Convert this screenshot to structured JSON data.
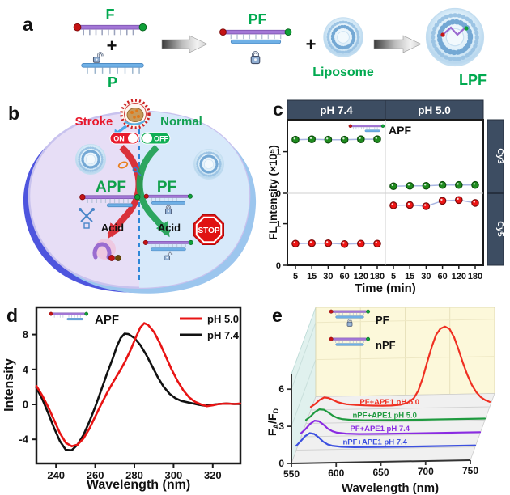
{
  "colors": {
    "navy_strip": "#3d4d62",
    "green_label": "#00a94f",
    "stroke_red": "#e8192c",
    "normal_green": "#12a050",
    "cell_left": "#e7def6",
    "cell_right": "#d7e9fa",
    "rim_dark_blue": "#4e55de",
    "rim_light_blue": "#9cc6ee",
    "connector": "#a9b6e2",
    "cy3_point": "#1f8c1f",
    "cy5_point": "#ee1515",
    "ph50_line": "#e81414",
    "ph74_line": "#111111",
    "back_wall": "#fcf8da",
    "side_wall": "#e0f1ee",
    "floor": "#f0f0f0"
  },
  "panels": {
    "a": {
      "letter": "a",
      "f": "F",
      "plus1": "+",
      "p": "P",
      "pf": "PF",
      "plus2": "+",
      "liposome": "Liposome",
      "lpf": "LPF"
    },
    "b": {
      "letter": "b",
      "stroke": "Stroke",
      "normal": "Normal",
      "on": "ON",
      "off": "OFF",
      "apf": "APF",
      "pf": "PF",
      "acid_left": "Acid",
      "acid_right": "Acid",
      "stop": "STOP"
    },
    "c": {
      "letter": "c"
    },
    "d": {
      "letter": "d"
    },
    "e": {
      "letter": "e"
    }
  },
  "chart_data": [
    {
      "type": "scatter",
      "panel": "c",
      "facet_columns": [
        "pH 7.4",
        "pH 5.0"
      ],
      "facet_rows": [
        "Cy3",
        "Cy5"
      ],
      "annotation": "APF",
      "xlabel": "Time (min)",
      "ylabel": "FL Intensity (×10⁵)",
      "x_categories": [
        5,
        15,
        30,
        60,
        120,
        180
      ],
      "ylim": [
        0,
        1.75
      ],
      "yticks": [
        0,
        1
      ],
      "grid": false,
      "series": [
        {
          "name": "Cy3 pH 7.4",
          "row": "Cy3",
          "col": "pH 7.4",
          "color": "#1f8c1f",
          "edge": "#0b4d0b",
          "values": [
            1.29,
            1.3,
            1.29,
            1.29,
            1.3,
            1.3
          ]
        },
        {
          "name": "Cy3 pH 5.0",
          "row": "Cy3",
          "col": "pH 5.0",
          "color": "#1f8c1f",
          "edge": "#0b4d0b",
          "values": [
            0.17,
            0.18,
            0.18,
            0.2,
            0.2,
            0.2
          ]
        },
        {
          "name": "Cy5 pH 7.4",
          "row": "Cy5",
          "col": "pH 7.4",
          "color": "#ee1515",
          "edge": "#7c0a0a",
          "values": [
            0.52,
            0.53,
            0.53,
            0.51,
            0.52,
            0.52
          ]
        },
        {
          "name": "Cy5 pH 5.0",
          "row": "Cy5",
          "col": "pH 5.0",
          "color": "#ee1515",
          "edge": "#7c0a0a",
          "values": [
            1.44,
            1.45,
            1.42,
            1.55,
            1.57,
            1.5
          ]
        }
      ]
    },
    {
      "type": "line",
      "panel": "d",
      "annotation": "APF",
      "xlabel": "Wavelength (nm)",
      "ylabel": "Intensity",
      "xlim": [
        230,
        336
      ],
      "ylim": [
        -6.5,
        11.3
      ],
      "xticks": [
        240,
        260,
        280,
        300,
        320
      ],
      "yticks": [
        -4,
        0,
        4,
        8
      ],
      "legend_position": "top-right",
      "series": [
        {
          "name": "pH 5.0",
          "color": "#e81414",
          "points": [
            [
              230,
              2.1
            ],
            [
              233,
              1.0
            ],
            [
              236,
              -0.3
            ],
            [
              239,
              -1.8
            ],
            [
              242,
              -3.3
            ],
            [
              245,
              -4.4
            ],
            [
              248,
              -4.8
            ],
            [
              251,
              -4.6
            ],
            [
              254,
              -3.9
            ],
            [
              257,
              -2.8
            ],
            [
              260,
              -1.4
            ],
            [
              263,
              0.0
            ],
            [
              266,
              1.3
            ],
            [
              269,
              2.5
            ],
            [
              272,
              3.6
            ],
            [
              275,
              4.8
            ],
            [
              278,
              6.2
            ],
            [
              281,
              7.8
            ],
            [
              283,
              8.8
            ],
            [
              285,
              9.3
            ],
            [
              287,
              9.1
            ],
            [
              290,
              8.3
            ],
            [
              293,
              7.0
            ],
            [
              296,
              5.5
            ],
            [
              299,
              4.0
            ],
            [
              302,
              2.7
            ],
            [
              305,
              1.6
            ],
            [
              308,
              0.8
            ],
            [
              311,
              0.3
            ],
            [
              314,
              0.0
            ],
            [
              317,
              -0.2
            ],
            [
              320,
              -0.1
            ],
            [
              323,
              0.05
            ],
            [
              327,
              0.1
            ],
            [
              331,
              0.05
            ],
            [
              334,
              0.1
            ]
          ]
        },
        {
          "name": "pH 7.4",
          "color": "#111111",
          "points": [
            [
              230,
              1.9
            ],
            [
              233,
              0.6
            ],
            [
              236,
              -1.0
            ],
            [
              239,
              -2.7
            ],
            [
              242,
              -4.2
            ],
            [
              245,
              -5.2
            ],
            [
              248,
              -5.25
            ],
            [
              251,
              -4.6
            ],
            [
              254,
              -3.5
            ],
            [
              257,
              -2.0
            ],
            [
              260,
              -0.3
            ],
            [
              263,
              1.6
            ],
            [
              266,
              3.5
            ],
            [
              269,
              5.3
            ],
            [
              271,
              6.6
            ],
            [
              273,
              7.6
            ],
            [
              275,
              8.1
            ],
            [
              277,
              8.05
            ],
            [
              280,
              7.6
            ],
            [
              283,
              6.8
            ],
            [
              286,
              5.7
            ],
            [
              289,
              4.4
            ],
            [
              292,
              3.1
            ],
            [
              295,
              2.0
            ],
            [
              298,
              1.2
            ],
            [
              301,
              0.7
            ],
            [
              304,
              0.4
            ],
            [
              307,
              0.25
            ],
            [
              310,
              0.1
            ],
            [
              313,
              -0.05
            ],
            [
              316,
              -0.15
            ],
            [
              319,
              -0.05
            ],
            [
              323,
              0.05
            ],
            [
              327,
              0.1
            ],
            [
              331,
              0.05
            ],
            [
              334,
              0.05
            ]
          ]
        }
      ]
    },
    {
      "type": "line-3d-waterfall",
      "panel": "e",
      "xlabel": "Wavelength (nm)",
      "ylabel": "FA/FD",
      "ylabel_parts": {
        "f1": "F",
        "s1": "A",
        "f2": "/F",
        "s2": "D"
      },
      "xticks": [
        550,
        600,
        650,
        700,
        750
      ],
      "yticks": [
        0,
        3,
        6
      ],
      "legend": [
        {
          "label": "PF",
          "icon": "pf-strand-lock-icon"
        },
        {
          "label": "nPF",
          "icon": "npf-strand-icon"
        }
      ],
      "series": [
        {
          "name": "nPF+APE1 pH 7.4",
          "color": "#3c50e0",
          "points": [
            [
              550,
              0.35
            ],
            [
              555,
              0.72
            ],
            [
              560,
              1.12
            ],
            [
              565,
              1.35
            ],
            [
              570,
              1.28
            ],
            [
              575,
              1.0
            ],
            [
              580,
              0.65
            ],
            [
              585,
              0.42
            ],
            [
              590,
              0.3
            ],
            [
              600,
              0.2
            ],
            [
              615,
              0.15
            ],
            [
              640,
              0.13
            ],
            [
              680,
              0.12
            ],
            [
              750,
              0.12
            ]
          ]
        },
        {
          "name": "PF+APE1 pH 7.4",
          "color": "#8a2be2",
          "points": [
            [
              550,
              0.3
            ],
            [
              555,
              0.62
            ],
            [
              560,
              1.02
            ],
            [
              565,
              1.28
            ],
            [
              570,
              1.22
            ],
            [
              575,
              0.95
            ],
            [
              580,
              0.6
            ],
            [
              585,
              0.4
            ],
            [
              590,
              0.28
            ],
            [
              600,
              0.19
            ],
            [
              615,
              0.14
            ],
            [
              640,
              0.12
            ],
            [
              680,
              0.11
            ],
            [
              750,
              0.11
            ]
          ]
        },
        {
          "name": "nPF+APE1 pH 5.0",
          "color": "#1f9a3f",
          "points": [
            [
              550,
              0.28
            ],
            [
              555,
              0.55
            ],
            [
              560,
              0.9
            ],
            [
              565,
              1.12
            ],
            [
              570,
              1.08
            ],
            [
              575,
              0.85
            ],
            [
              580,
              0.58
            ],
            [
              585,
              0.4
            ],
            [
              590,
              0.3
            ],
            [
              600,
              0.22
            ],
            [
              615,
              0.17
            ],
            [
              640,
              0.15
            ],
            [
              680,
              0.13
            ],
            [
              750,
              0.13
            ]
          ]
        },
        {
          "name": "PF+APE1 pH 5.0",
          "color": "#ef3022",
          "points": [
            [
              550,
              0.25
            ],
            [
              555,
              0.5
            ],
            [
              560,
              0.82
            ],
            [
              565,
              1.0
            ],
            [
              570,
              0.95
            ],
            [
              575,
              0.78
            ],
            [
              580,
              0.6
            ],
            [
              585,
              0.5
            ],
            [
              590,
              0.42
            ],
            [
              600,
              0.35
            ],
            [
              610,
              0.3
            ],
            [
              620,
              0.27
            ],
            [
              630,
              0.25
            ],
            [
              640,
              0.25
            ],
            [
              650,
              0.3
            ],
            [
              658,
              0.45
            ],
            [
              665,
              0.8
            ],
            [
              670,
              1.4
            ],
            [
              675,
              2.4
            ],
            [
              680,
              3.7
            ],
            [
              685,
              4.9
            ],
            [
              690,
              5.9
            ],
            [
              695,
              6.4
            ],
            [
              700,
              6.55
            ],
            [
              705,
              6.35
            ],
            [
              710,
              5.7
            ],
            [
              715,
              4.7
            ],
            [
              720,
              3.6
            ],
            [
              725,
              2.6
            ],
            [
              730,
              1.8
            ],
            [
              735,
              1.2
            ],
            [
              740,
              0.8
            ],
            [
              745,
              0.55
            ],
            [
              750,
              0.4
            ]
          ]
        }
      ]
    }
  ]
}
